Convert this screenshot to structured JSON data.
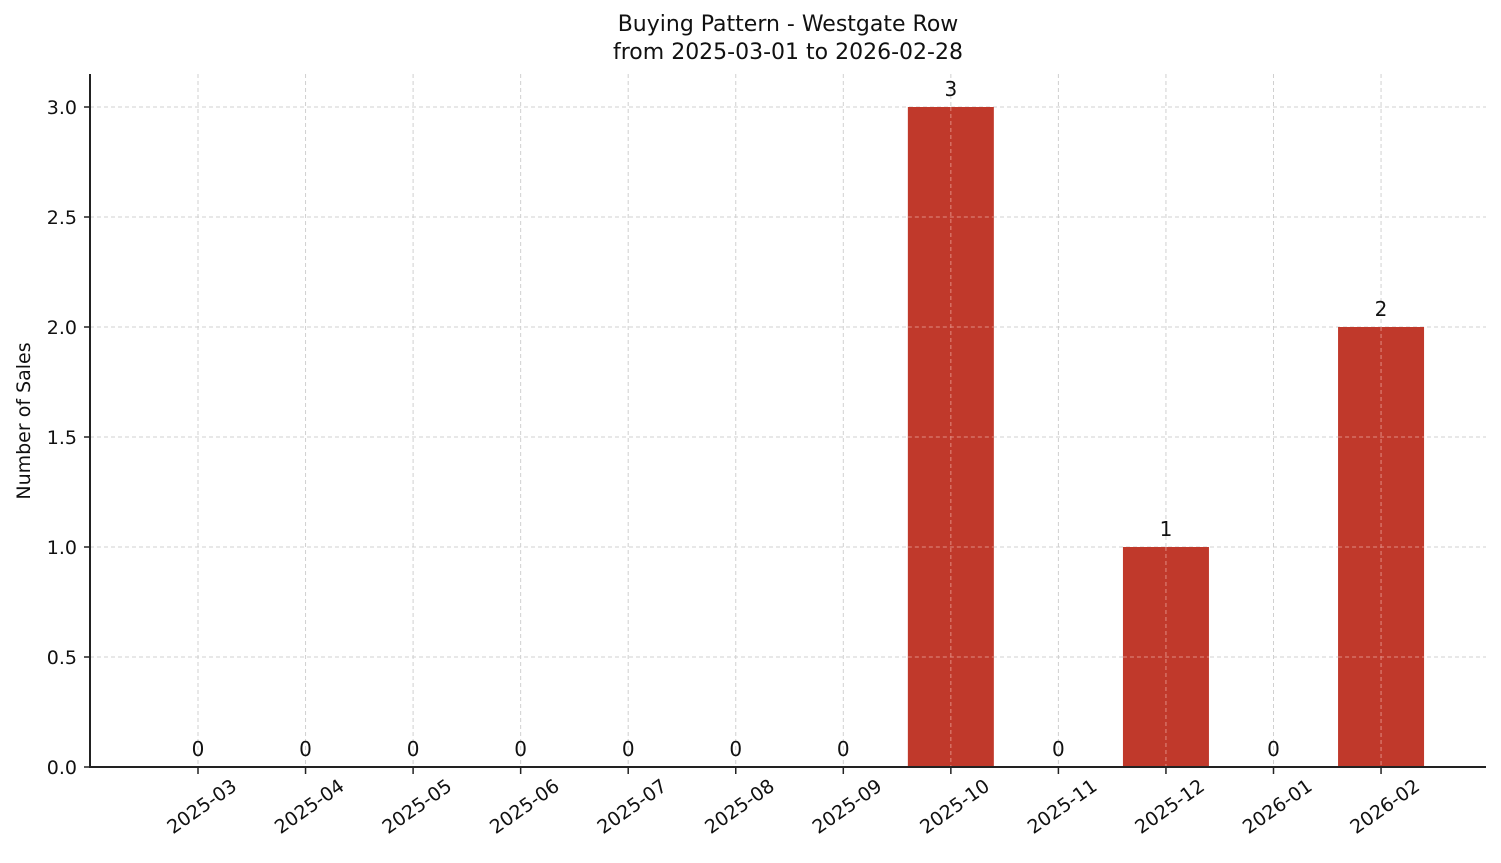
{
  "chart_data": {
    "type": "bar",
    "title": "Buying Pattern - Westgate Row",
    "subtitle": "from 2025-03-01 to 2026-02-28",
    "xlabel": "",
    "ylabel": "Number of Sales",
    "categories": [
      "2025-03",
      "2025-04",
      "2025-05",
      "2025-06",
      "2025-07",
      "2025-08",
      "2025-09",
      "2025-10",
      "2025-11",
      "2025-12",
      "2026-01",
      "2026-02"
    ],
    "values": [
      0,
      0,
      0,
      0,
      0,
      0,
      0,
      3,
      0,
      1,
      0,
      2
    ],
    "data_labels": [
      "0",
      "0",
      "0",
      "0",
      "0",
      "0",
      "0",
      "3",
      "0",
      "1",
      "0",
      "2"
    ],
    "ylim": [
      0,
      3.15
    ],
    "yticks": [
      0.0,
      0.5,
      1.0,
      1.5,
      2.0,
      2.5,
      3.0
    ],
    "ytick_labels": [
      "0.0",
      "0.5",
      "1.0",
      "1.5",
      "2.0",
      "2.5",
      "3.0"
    ],
    "grid": true,
    "legend": null,
    "bar_color": "#c0392b",
    "x_tick_rotation": 35
  }
}
